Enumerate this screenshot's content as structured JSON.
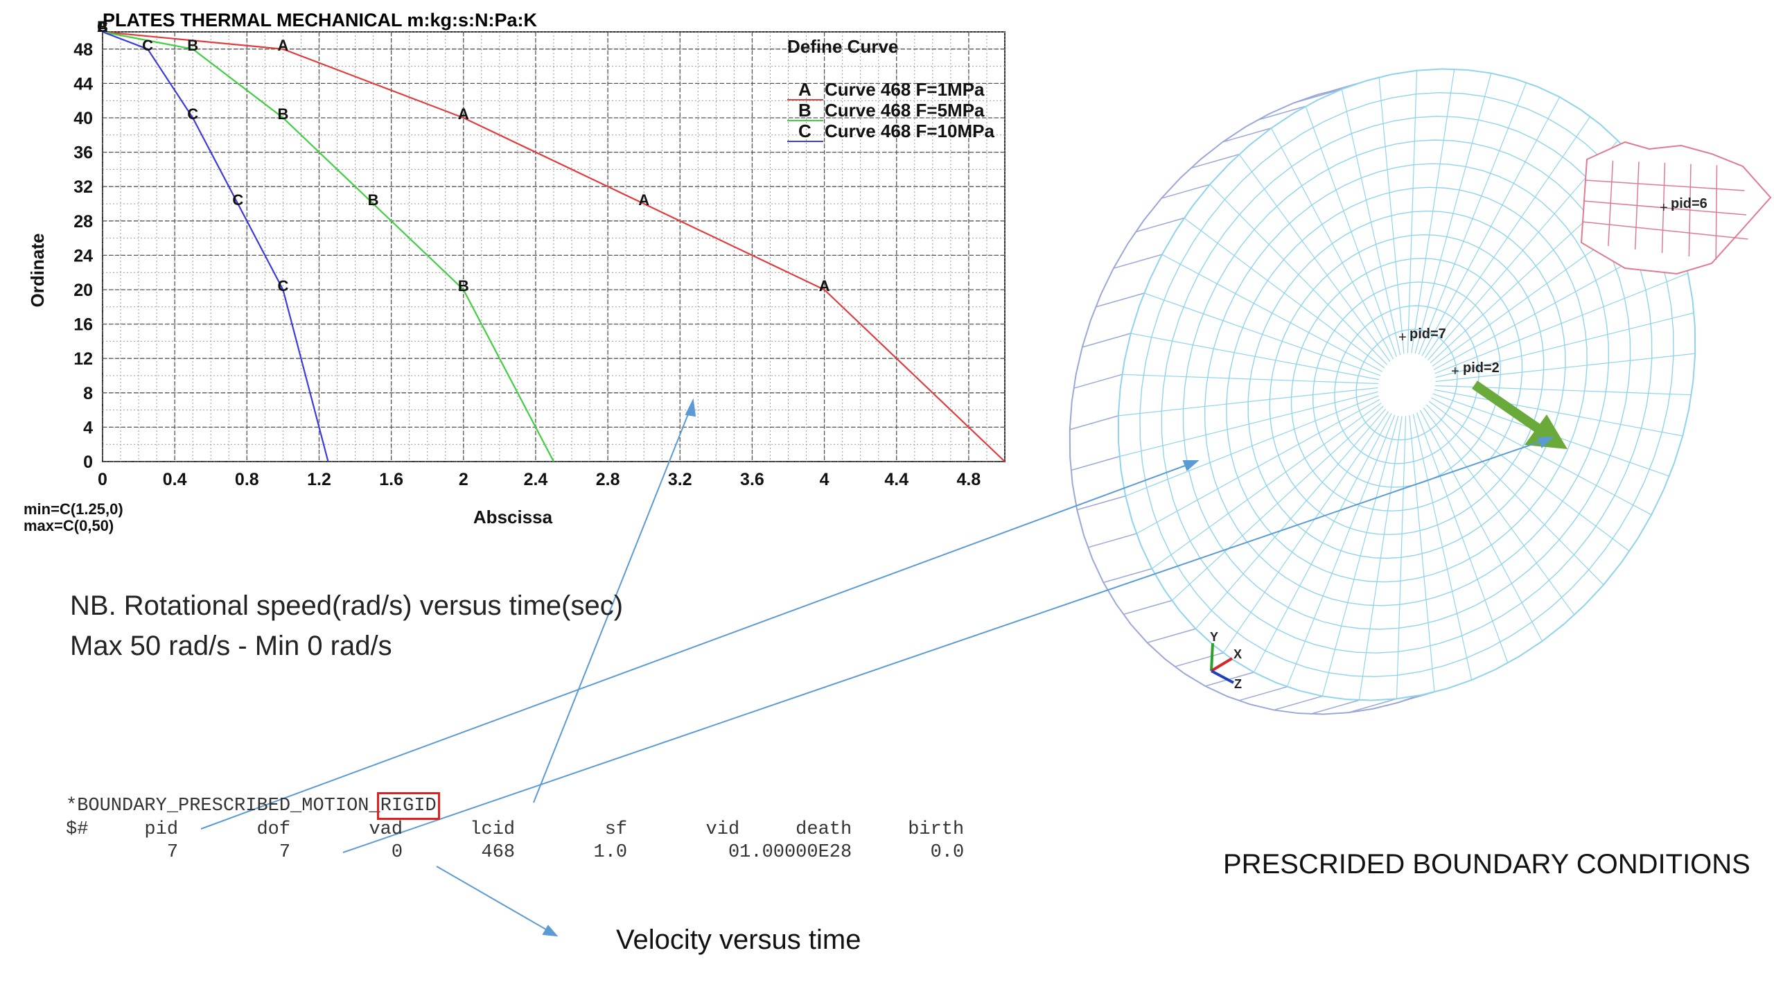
{
  "chart_data": {
    "type": "line",
    "title": "PLATES THERMAL MECHANICAL m:kg:s:N:Pa:K",
    "xlabel": "Abscissa",
    "ylabel": "Ordinate",
    "xlim": [
      0,
      5
    ],
    "ylim": [
      0,
      50
    ],
    "xticks": [
      "0",
      "0.4",
      "0.8",
      "1.2",
      "1.6",
      "2",
      "2.4",
      "2.8",
      "3.2",
      "3.6",
      "4",
      "4.4",
      "4.8"
    ],
    "yticks": [
      "0",
      "4",
      "8",
      "12",
      "16",
      "20",
      "24",
      "28",
      "32",
      "36",
      "40",
      "44",
      "48"
    ],
    "grid": true,
    "legend_title": "Define Curve",
    "legend_position": "top-right",
    "series": [
      {
        "marker": "A",
        "name": "Curve 468 F=1MPa",
        "color": "#e03c3c",
        "x": [
          0,
          1,
          2,
          3,
          4,
          5
        ],
        "y": [
          50,
          48,
          40,
          30,
          20,
          0
        ]
      },
      {
        "marker": "B",
        "name": "Curve 468 F=5MPa",
        "color": "#3fcf3f",
        "x": [
          0,
          0.5,
          1,
          1.5,
          2,
          2.5
        ],
        "y": [
          50,
          48,
          40,
          30,
          20,
          0
        ]
      },
      {
        "marker": "C",
        "name": "Curve 468 F=10MPa",
        "color": "#3a3adf",
        "x": [
          0,
          0.25,
          0.5,
          0.75,
          1,
          1.25
        ],
        "y": [
          50,
          48,
          40,
          30,
          20,
          0
        ]
      }
    ],
    "min_text": "min=C(1.25,0)",
    "max_text": "max=C(0,50)"
  },
  "notes": {
    "line1": "NB. Rotational speed(rad/s) versus time(sec)",
    "line2": "Max 50 rad/s - Min 0 rad/s"
  },
  "keyword": {
    "title_prefix": "*BOUNDARY_PRESCRIBED_MOTION_",
    "title_highlight": "RIGID",
    "header_row": "$#     pid       dof       vad      lcid        sf       vid     death     birth",
    "value_row": "         7         7         0       468       1.0         01.00000E28       0.0"
  },
  "caption_velocity": "Velocity versus time",
  "caption_boundary": "PRESCRIDED BOUNDARY CONDITIONS",
  "model": {
    "pid_labels": [
      "pid=7",
      "pid=2",
      "pid=6"
    ],
    "axis_labels": [
      "Y",
      "X",
      "Z"
    ],
    "mesh_color": "#8fd4ec",
    "rim_color": "#9aa8d8",
    "part6_color": "#e07a90",
    "arrow_color": "#6aaa3a",
    "leader_color": "#5b9bd5"
  }
}
